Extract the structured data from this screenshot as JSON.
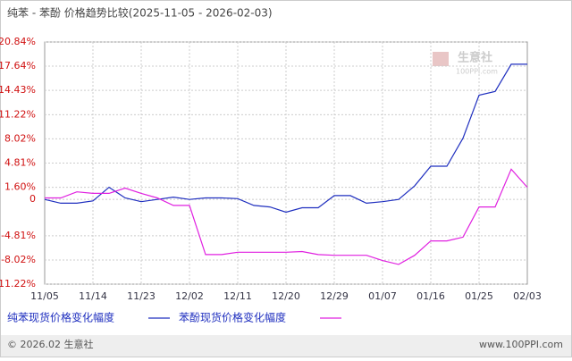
{
  "chart_data": {
    "type": "line",
    "title": "纯苯 - 苯酚 价格趋势比较(2025-11-05 - 2026-02-03)",
    "categories": [
      "11/05",
      null,
      null,
      "11/14",
      null,
      null,
      "11/23",
      null,
      null,
      "12/02",
      null,
      null,
      "12/11",
      null,
      null,
      "12/20",
      null,
      null,
      "12/29",
      null,
      null,
      "01/07",
      null,
      null,
      "01/16",
      null,
      null,
      "01/25",
      null,
      null,
      "02/03"
    ],
    "series": [
      {
        "name": "纯苯现货价格变化幅度",
        "color": "#1f2fbf",
        "values": [
          0,
          -0.5,
          -0.5,
          -0.2,
          1.6,
          0.2,
          -0.3,
          0,
          0.3,
          0,
          0.2,
          0.2,
          0.1,
          -0.8,
          -1.0,
          -1.7,
          -1.1,
          -1.1,
          0.5,
          0.5,
          -0.5,
          -0.3,
          0,
          1.8,
          4.4,
          4.4,
          8.1,
          13.8,
          14.3,
          17.9,
          17.9
        ]
      },
      {
        "name": "苯酚现货价格变化幅度",
        "color": "#e020e0",
        "values": [
          0.2,
          0.2,
          1.0,
          0.8,
          0.8,
          1.5,
          0.8,
          0.2,
          -0.8,
          -0.8,
          -7.3,
          -7.3,
          -7.0,
          -7.0,
          -7.0,
          -7.0,
          -6.9,
          -7.3,
          -7.4,
          -7.4,
          -7.4,
          -8.1,
          -8.6,
          -7.4,
          -5.5,
          -5.5,
          -5.0,
          -1.0,
          -1.0,
          4.0,
          1.6
        ]
      }
    ],
    "ylim": [
      -11.22,
      20.84
    ],
    "yticks": [
      {
        "value": -11.22,
        "label": "-11.22%"
      },
      {
        "value": -8.02,
        "label": "-8.02%"
      },
      {
        "value": -4.81,
        "label": "-4.81%"
      },
      0,
      {
        "value": 1.6,
        "label": "1.60%"
      },
      {
        "value": 4.81,
        "label": "4.81%"
      },
      {
        "value": 8.02,
        "label": "8.02%"
      },
      {
        "value": 11.22,
        "label": "11.22%"
      },
      {
        "value": 14.43,
        "label": "14.43%"
      },
      {
        "value": 17.64,
        "label": "17.64%"
      },
      {
        "value": 20.84,
        "label": "20.84%"
      }
    ],
    "grid": true
  },
  "watermark": {
    "name": "生意社",
    "site": "100PPI.com"
  },
  "footer": {
    "copyright": "© 2026.02 生意社",
    "site": "www.100PPI.com"
  }
}
